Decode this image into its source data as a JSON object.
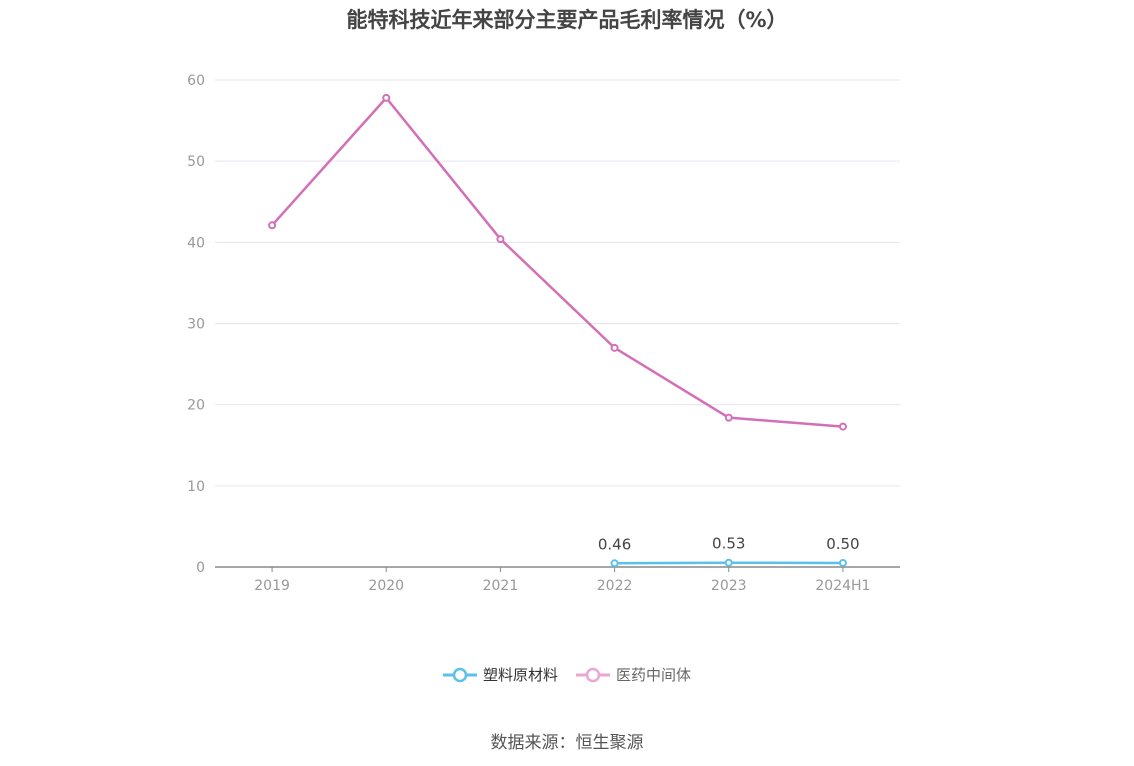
{
  "chart_data": {
    "type": "line",
    "title": "能特科技近年来部分主要产品毛利率情况（%）",
    "categories": [
      "2019",
      "2020",
      "2021",
      "2022",
      "2023",
      "2024H1"
    ],
    "ylim": [
      0,
      60
    ],
    "yticks": [
      "0",
      "10",
      "20",
      "30",
      "40",
      "50",
      "60"
    ],
    "grid": true,
    "legend_position": "bottom",
    "series": [
      {
        "name": "塑料原材料",
        "color": "#5bc0eb",
        "values": [
          null,
          null,
          null,
          0.46,
          0.53,
          0.5
        ],
        "labels": [
          "",
          "",
          "",
          "0.46",
          "0.53",
          "0.50"
        ]
      },
      {
        "name": "医药中间体",
        "color": "#d36fb6",
        "values": [
          42.1,
          57.8,
          40.4,
          27.0,
          18.4,
          17.3
        ],
        "labels": [
          "",
          "",
          "",
          "",
          "",
          ""
        ]
      }
    ]
  },
  "source": "数据来源：恒生聚源"
}
